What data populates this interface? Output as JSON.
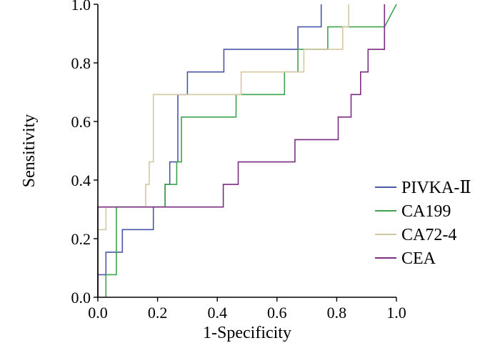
{
  "chart_data": {
    "type": "line",
    "title": "",
    "xlabel": "1-Specificity",
    "ylabel": "Sensitivity",
    "xlim": [
      0,
      1
    ],
    "ylim": [
      0,
      1
    ],
    "xticks": [
      "0.0",
      "0.2",
      "0.4",
      "0.6",
      "0.8",
      "1.0"
    ],
    "yticks": [
      "0.0",
      "0.2",
      "0.4",
      "0.6",
      "0.8",
      "1.0"
    ],
    "grid": false,
    "legend_position": "right",
    "series": [
      {
        "name": "PIVKA-Ⅱ",
        "color": "#4a57a8",
        "points": [
          [
            0,
            0
          ],
          [
            0,
            0.077
          ],
          [
            0.027,
            0.077
          ],
          [
            0.027,
            0.154
          ],
          [
            0.082,
            0.154
          ],
          [
            0.082,
            0.231
          ],
          [
            0.186,
            0.231
          ],
          [
            0.186,
            0.308
          ],
          [
            0.225,
            0.308
          ],
          [
            0.225,
            0.385
          ],
          [
            0.241,
            0.385
          ],
          [
            0.241,
            0.462
          ],
          [
            0.268,
            0.462
          ],
          [
            0.268,
            0.692
          ],
          [
            0.3,
            0.692
          ],
          [
            0.3,
            0.769
          ],
          [
            0.422,
            0.769
          ],
          [
            0.422,
            0.846
          ],
          [
            0.67,
            0.846
          ],
          [
            0.67,
            0.923
          ],
          [
            0.748,
            0.923
          ],
          [
            0.748,
            1.0
          ]
        ]
      },
      {
        "name": "CA199",
        "color": "#3fa34d",
        "points": [
          [
            0.027,
            0
          ],
          [
            0.027,
            0.077
          ],
          [
            0.062,
            0.077
          ],
          [
            0.062,
            0.308
          ],
          [
            0.225,
            0.308
          ],
          [
            0.225,
            0.385
          ],
          [
            0.264,
            0.385
          ],
          [
            0.264,
            0.462
          ],
          [
            0.28,
            0.462
          ],
          [
            0.28,
            0.615
          ],
          [
            0.463,
            0.615
          ],
          [
            0.463,
            0.692
          ],
          [
            0.625,
            0.692
          ],
          [
            0.625,
            0.769
          ],
          [
            0.67,
            0.769
          ],
          [
            0.67,
            0.846
          ],
          [
            0.77,
            0.846
          ],
          [
            0.77,
            0.923
          ],
          [
            0.96,
            0.923
          ],
          [
            1.0,
            1.0
          ]
        ]
      },
      {
        "name": "CA72-4",
        "color": "#d4c8a2",
        "points": [
          [
            0,
            0
          ],
          [
            0,
            0.231
          ],
          [
            0.027,
            0.231
          ],
          [
            0.027,
            0.308
          ],
          [
            0.16,
            0.308
          ],
          [
            0.16,
            0.385
          ],
          [
            0.172,
            0.385
          ],
          [
            0.172,
            0.462
          ],
          [
            0.186,
            0.462
          ],
          [
            0.186,
            0.692
          ],
          [
            0.48,
            0.692
          ],
          [
            0.48,
            0.769
          ],
          [
            0.69,
            0.769
          ],
          [
            0.69,
            0.846
          ],
          [
            0.82,
            0.846
          ],
          [
            0.82,
            0.923
          ],
          [
            0.84,
            0.923
          ],
          [
            0.84,
            1.0
          ]
        ]
      },
      {
        "name": "CEA",
        "color": "#7b2d82",
        "points": [
          [
            0,
            0
          ],
          [
            0,
            0.308
          ],
          [
            0.42,
            0.308
          ],
          [
            0.42,
            0.385
          ],
          [
            0.47,
            0.385
          ],
          [
            0.47,
            0.462
          ],
          [
            0.66,
            0.462
          ],
          [
            0.66,
            0.538
          ],
          [
            0.805,
            0.538
          ],
          [
            0.805,
            0.615
          ],
          [
            0.848,
            0.615
          ],
          [
            0.848,
            0.692
          ],
          [
            0.88,
            0.692
          ],
          [
            0.88,
            0.769
          ],
          [
            0.905,
            0.769
          ],
          [
            0.905,
            0.846
          ],
          [
            0.94,
            0.846
          ],
          [
            0.96,
            0.846
          ],
          [
            0.96,
            1.0
          ]
        ]
      }
    ]
  }
}
